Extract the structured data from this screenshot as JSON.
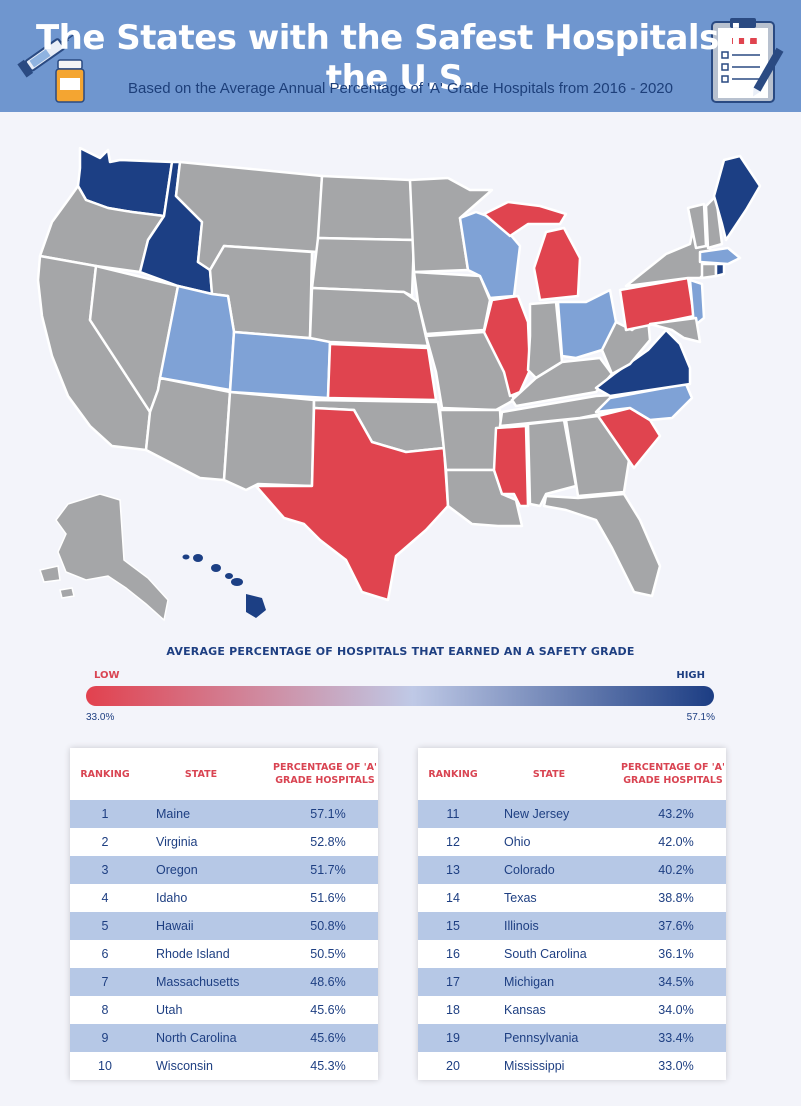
{
  "header": {
    "title": "The States with the Safest Hospitals in the U.S.",
    "subtitle": "Based on the Average Annual Percentage of  'A' Grade Hospitals from 2016 - 2020"
  },
  "colors": {
    "banner": "#6f96cf",
    "dark_blue": "#1c3f84",
    "light_blue": "#7fa2d6",
    "red": "#e0444f",
    "gray": "#a5a6a8",
    "row_stripe": "#b6c8e6"
  },
  "legend": {
    "title": "AVERAGE PERCENTAGE OF HOSPITALS THAT EARNED AN A SAFETY GRADE",
    "low_label": "LOW",
    "high_label": "HIGH",
    "min_value": "33.0%",
    "max_value": "57.1%"
  },
  "table": {
    "headers": {
      "ranking": "RANKING",
      "state": "STATE",
      "pct_line1": "PERCENTAGE OF 'A'",
      "pct_line2": "GRADE HOSPITALS"
    },
    "rows": [
      {
        "rank": "1",
        "state": "Maine",
        "pct": "57.1%"
      },
      {
        "rank": "2",
        "state": "Virginia",
        "pct": "52.8%"
      },
      {
        "rank": "3",
        "state": "Oregon",
        "pct": "51.7%"
      },
      {
        "rank": "4",
        "state": "Idaho",
        "pct": "51.6%"
      },
      {
        "rank": "5",
        "state": "Hawaii",
        "pct": "50.8%"
      },
      {
        "rank": "6",
        "state": "Rhode Island",
        "pct": "50.5%"
      },
      {
        "rank": "7",
        "state": "Massachusetts",
        "pct": "48.6%"
      },
      {
        "rank": "8",
        "state": "Utah",
        "pct": "45.6%"
      },
      {
        "rank": "9",
        "state": "North Carolina",
        "pct": "45.6%"
      },
      {
        "rank": "10",
        "state": "Wisconsin",
        "pct": "45.3%"
      },
      {
        "rank": "11",
        "state": "New Jersey",
        "pct": "43.2%"
      },
      {
        "rank": "12",
        "state": "Ohio",
        "pct": "42.0%"
      },
      {
        "rank": "13",
        "state": "Colorado",
        "pct": "40.2%"
      },
      {
        "rank": "14",
        "state": "Texas",
        "pct": "38.8%"
      },
      {
        "rank": "15",
        "state": "Illinois",
        "pct": "37.6%"
      },
      {
        "rank": "16",
        "state": "South Carolina",
        "pct": "36.1%"
      },
      {
        "rank": "17",
        "state": "Michigan",
        "pct": "34.5%"
      },
      {
        "rank": "18",
        "state": "Kansas",
        "pct": "34.0%"
      },
      {
        "rank": "19",
        "state": "Pennsylvania",
        "pct": "33.4%"
      },
      {
        "rank": "20",
        "state": "Mississippi",
        "pct": "33.0%"
      }
    ]
  }
}
